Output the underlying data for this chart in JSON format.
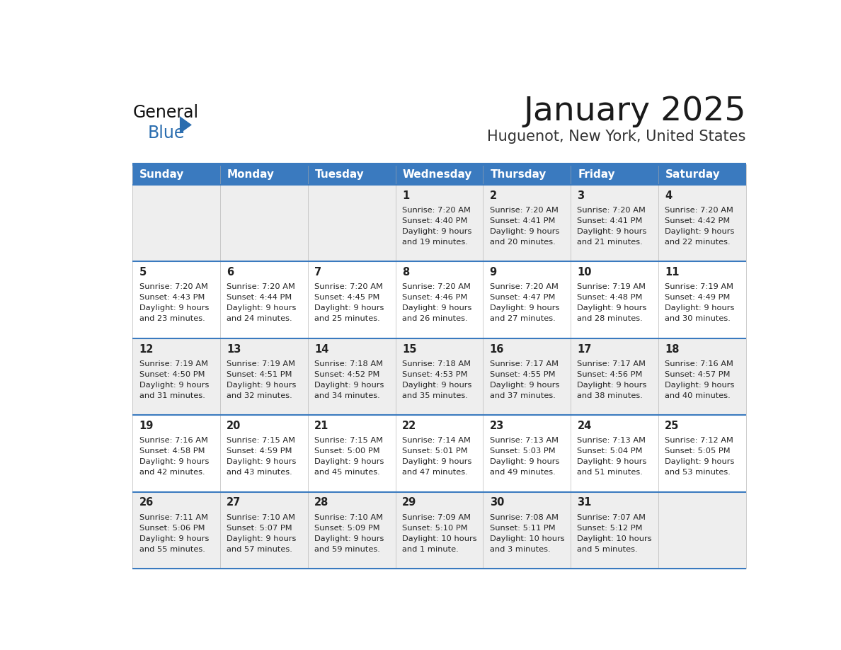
{
  "title": "January 2025",
  "subtitle": "Huguenot, New York, United States",
  "days_of_week": [
    "Sunday",
    "Monday",
    "Tuesday",
    "Wednesday",
    "Thursday",
    "Friday",
    "Saturday"
  ],
  "header_bg": "#3a7abf",
  "header_text": "#ffffff",
  "cell_bg_odd": "#eeeeee",
  "cell_bg_even": "#ffffff",
  "border_color": "#3a7abf",
  "text_color": "#222222",
  "title_color": "#1a1a1a",
  "subtitle_color": "#333333",
  "calendar_data": [
    [
      {
        "day": "",
        "sunrise": "",
        "sunset": "",
        "daylight": ""
      },
      {
        "day": "",
        "sunrise": "",
        "sunset": "",
        "daylight": ""
      },
      {
        "day": "",
        "sunrise": "",
        "sunset": "",
        "daylight": ""
      },
      {
        "day": "1",
        "sunrise": "7:20 AM",
        "sunset": "4:40 PM",
        "daylight": "9 hours and 19 minutes."
      },
      {
        "day": "2",
        "sunrise": "7:20 AM",
        "sunset": "4:41 PM",
        "daylight": "9 hours and 20 minutes."
      },
      {
        "day": "3",
        "sunrise": "7:20 AM",
        "sunset": "4:41 PM",
        "daylight": "9 hours and 21 minutes."
      },
      {
        "day": "4",
        "sunrise": "7:20 AM",
        "sunset": "4:42 PM",
        "daylight": "9 hours and 22 minutes."
      }
    ],
    [
      {
        "day": "5",
        "sunrise": "7:20 AM",
        "sunset": "4:43 PM",
        "daylight": "9 hours and 23 minutes."
      },
      {
        "day": "6",
        "sunrise": "7:20 AM",
        "sunset": "4:44 PM",
        "daylight": "9 hours and 24 minutes."
      },
      {
        "day": "7",
        "sunrise": "7:20 AM",
        "sunset": "4:45 PM",
        "daylight": "9 hours and 25 minutes."
      },
      {
        "day": "8",
        "sunrise": "7:20 AM",
        "sunset": "4:46 PM",
        "daylight": "9 hours and 26 minutes."
      },
      {
        "day": "9",
        "sunrise": "7:20 AM",
        "sunset": "4:47 PM",
        "daylight": "9 hours and 27 minutes."
      },
      {
        "day": "10",
        "sunrise": "7:19 AM",
        "sunset": "4:48 PM",
        "daylight": "9 hours and 28 minutes."
      },
      {
        "day": "11",
        "sunrise": "7:19 AM",
        "sunset": "4:49 PM",
        "daylight": "9 hours and 30 minutes."
      }
    ],
    [
      {
        "day": "12",
        "sunrise": "7:19 AM",
        "sunset": "4:50 PM",
        "daylight": "9 hours and 31 minutes."
      },
      {
        "day": "13",
        "sunrise": "7:19 AM",
        "sunset": "4:51 PM",
        "daylight": "9 hours and 32 minutes."
      },
      {
        "day": "14",
        "sunrise": "7:18 AM",
        "sunset": "4:52 PM",
        "daylight": "9 hours and 34 minutes."
      },
      {
        "day": "15",
        "sunrise": "7:18 AM",
        "sunset": "4:53 PM",
        "daylight": "9 hours and 35 minutes."
      },
      {
        "day": "16",
        "sunrise": "7:17 AM",
        "sunset": "4:55 PM",
        "daylight": "9 hours and 37 minutes."
      },
      {
        "day": "17",
        "sunrise": "7:17 AM",
        "sunset": "4:56 PM",
        "daylight": "9 hours and 38 minutes."
      },
      {
        "day": "18",
        "sunrise": "7:16 AM",
        "sunset": "4:57 PM",
        "daylight": "9 hours and 40 minutes."
      }
    ],
    [
      {
        "day": "19",
        "sunrise": "7:16 AM",
        "sunset": "4:58 PM",
        "daylight": "9 hours and 42 minutes."
      },
      {
        "day": "20",
        "sunrise": "7:15 AM",
        "sunset": "4:59 PM",
        "daylight": "9 hours and 43 minutes."
      },
      {
        "day": "21",
        "sunrise": "7:15 AM",
        "sunset": "5:00 PM",
        "daylight": "9 hours and 45 minutes."
      },
      {
        "day": "22",
        "sunrise": "7:14 AM",
        "sunset": "5:01 PM",
        "daylight": "9 hours and 47 minutes."
      },
      {
        "day": "23",
        "sunrise": "7:13 AM",
        "sunset": "5:03 PM",
        "daylight": "9 hours and 49 minutes."
      },
      {
        "day": "24",
        "sunrise": "7:13 AM",
        "sunset": "5:04 PM",
        "daylight": "9 hours and 51 minutes."
      },
      {
        "day": "25",
        "sunrise": "7:12 AM",
        "sunset": "5:05 PM",
        "daylight": "9 hours and 53 minutes."
      }
    ],
    [
      {
        "day": "26",
        "sunrise": "7:11 AM",
        "sunset": "5:06 PM",
        "daylight": "9 hours and 55 minutes."
      },
      {
        "day": "27",
        "sunrise": "7:10 AM",
        "sunset": "5:07 PM",
        "daylight": "9 hours and 57 minutes."
      },
      {
        "day": "28",
        "sunrise": "7:10 AM",
        "sunset": "5:09 PM",
        "daylight": "9 hours and 59 minutes."
      },
      {
        "day": "29",
        "sunrise": "7:09 AM",
        "sunset": "5:10 PM",
        "daylight": "10 hours and 1 minute."
      },
      {
        "day": "30",
        "sunrise": "7:08 AM",
        "sunset": "5:11 PM",
        "daylight": "10 hours and 3 minutes."
      },
      {
        "day": "31",
        "sunrise": "7:07 AM",
        "sunset": "5:12 PM",
        "daylight": "10 hours and 5 minutes."
      },
      {
        "day": "",
        "sunrise": "",
        "sunset": "",
        "daylight": ""
      }
    ]
  ],
  "logo_general_color": "#111111",
  "logo_blue_color": "#2a6daf",
  "logo_triangle_color": "#2a6daf"
}
